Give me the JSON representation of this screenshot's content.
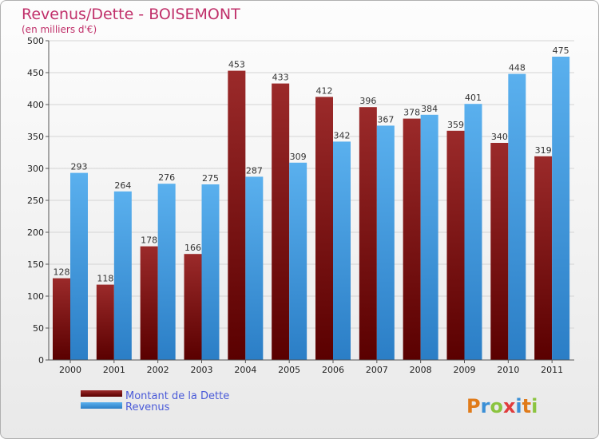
{
  "chart_data": {
    "type": "bar",
    "title": "Revenus/Dette - BOISEMONT",
    "subtitle": "(en milliers d'€)",
    "categories": [
      "2000",
      "2001",
      "2002",
      "2003",
      "2004",
      "2005",
      "2006",
      "2007",
      "2008",
      "2009",
      "2010",
      "2011"
    ],
    "series": [
      {
        "name": "Montant de la Dette",
        "color": "#8b1a1a",
        "values": [
          128,
          118,
          178,
          166,
          453,
          433,
          412,
          396,
          378,
          359,
          340,
          319
        ]
      },
      {
        "name": "Revenus",
        "color": "#4aa3e8",
        "values": [
          293,
          264,
          276,
          275,
          287,
          309,
          342,
          367,
          384,
          401,
          448,
          475
        ]
      }
    ],
    "ylim": [
      0,
      500
    ],
    "yticks": [
      0,
      50,
      100,
      150,
      200,
      250,
      300,
      350,
      400,
      450,
      500
    ],
    "grid": true,
    "legend_position": "bottom-left"
  },
  "logo": {
    "text": "Proxiti",
    "colors": [
      "#e07b1a",
      "#3a8fd6",
      "#8bc43f",
      "#e03c3c",
      "#3a8fd6",
      "#e07b1a",
      "#8bc43f"
    ]
  }
}
